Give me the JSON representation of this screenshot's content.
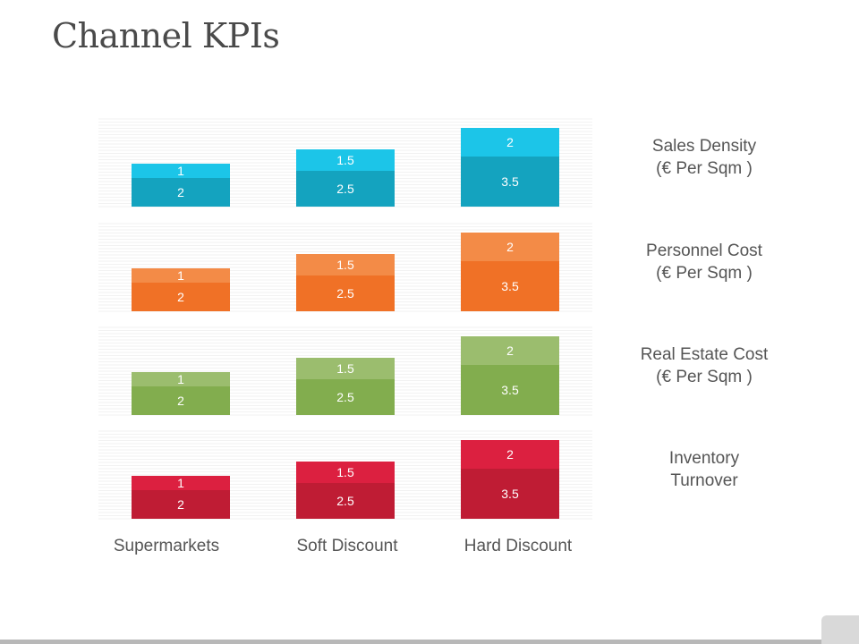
{
  "page": {
    "title": "Channel KPIs"
  },
  "chart_data": {
    "type": "bar",
    "stacked": true,
    "categories": [
      "Supermarkets",
      "Soft Discount",
      "Hard Discount"
    ],
    "panels": [
      {
        "label_lines": [
          "Sales Density",
          "(€ Per Sqm )"
        ],
        "colors": {
          "lower": "#14a3bf",
          "upper": "#1cc5e8"
        },
        "series": [
          {
            "values": [
              2,
              2.5,
              3.5
            ]
          },
          {
            "values": [
              1,
              1.5,
              2
            ]
          }
        ]
      },
      {
        "label_lines": [
          "Personnel Cost",
          "(€ Per Sqm )"
        ],
        "colors": {
          "lower": "#f07126",
          "upper": "#f38b47"
        },
        "series": [
          {
            "values": [
              2,
              2.5,
              3.5
            ]
          },
          {
            "values": [
              1,
              1.5,
              2
            ]
          }
        ]
      },
      {
        "label_lines": [
          "Real Estate Cost",
          "(€ Per Sqm )"
        ],
        "colors": {
          "lower": "#82ad4e",
          "upper": "#9bbd6e"
        },
        "series": [
          {
            "values": [
              2,
              2.5,
              3.5
            ]
          },
          {
            "values": [
              1,
              1.5,
              2
            ]
          }
        ]
      },
      {
        "label_lines": [
          "Inventory",
          "Turnover"
        ],
        "colors": {
          "lower": "#bf1c34",
          "upper": "#dc2040"
        },
        "series": [
          {
            "values": [
              2,
              2.5,
              3.5
            ]
          },
          {
            "values": [
              1,
              1.5,
              2
            ]
          }
        ]
      }
    ],
    "ylim": [
      0,
      6
    ],
    "grid": true,
    "legend": "right"
  }
}
